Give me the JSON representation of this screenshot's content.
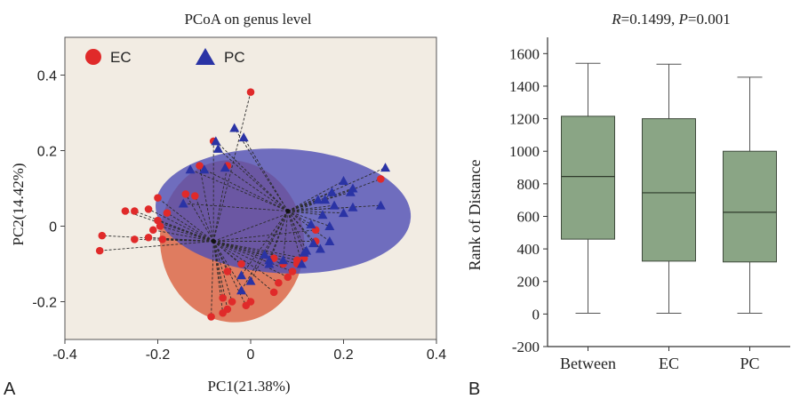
{
  "panel_a": {
    "letter": "A",
    "chart_data": {
      "type": "scatter",
      "title": "PCoA on genus level",
      "xlabel": "PC1(21.38%)",
      "ylabel": "PC2(14.42%)",
      "xlim": [
        -0.4,
        0.4
      ],
      "ylim": [
        -0.3,
        0.5
      ],
      "xticks": [
        "-0.4",
        "-0.2",
        "0",
        "0.2",
        "0.4"
      ],
      "yticks": [
        "-0.2",
        "0",
        "0.2",
        "0.4"
      ],
      "grid": false,
      "legend_position": "top-left",
      "background_color": "#f2ece3",
      "series": [
        {
          "name": "EC",
          "marker": "circle",
          "color": "#e02a2a",
          "ellipse_color": "#d9603f",
          "centroid": [
            -0.08,
            -0.04
          ],
          "ellipse": {
            "cx": -0.04,
            "cy": -0.04,
            "rx": 0.155,
            "ry": 0.215,
            "rotation_deg": 8
          },
          "points": [
            [
              0.0,
              0.355
            ],
            [
              -0.08,
              0.225
            ],
            [
              -0.11,
              0.16
            ],
            [
              -0.05,
              0.16
            ],
            [
              -0.12,
              0.08
            ],
            [
              -0.14,
              0.085
            ],
            [
              -0.2,
              0.075
            ],
            [
              -0.22,
              0.045
            ],
            [
              -0.25,
              0.04
            ],
            [
              -0.27,
              0.04
            ],
            [
              -0.18,
              0.035
            ],
            [
              -0.2,
              0.015
            ],
            [
              -0.195,
              0.0
            ],
            [
              -0.21,
              -0.01
            ],
            [
              -0.22,
              -0.03
            ],
            [
              -0.25,
              -0.035
            ],
            [
              -0.32,
              -0.025
            ],
            [
              -0.325,
              -0.065
            ],
            [
              -0.19,
              -0.035
            ],
            [
              -0.06,
              -0.19
            ],
            [
              -0.04,
              -0.2
            ],
            [
              -0.05,
              -0.22
            ],
            [
              -0.06,
              -0.23
            ],
            [
              -0.085,
              -0.24
            ],
            [
              -0.01,
              -0.21
            ],
            [
              0.0,
              -0.2
            ],
            [
              0.05,
              -0.175
            ],
            [
              0.06,
              -0.15
            ],
            [
              0.08,
              -0.135
            ],
            [
              0.09,
              -0.12
            ],
            [
              0.1,
              -0.1
            ],
            [
              0.07,
              -0.1
            ],
            [
              0.05,
              -0.085
            ],
            [
              0.1,
              -0.09
            ],
            [
              0.115,
              -0.085
            ],
            [
              0.14,
              -0.04
            ],
            [
              0.14,
              -0.01
            ],
            [
              0.28,
              0.125
            ],
            [
              -0.05,
              -0.12
            ],
            [
              -0.02,
              -0.1
            ]
          ]
        },
        {
          "name": "PC",
          "marker": "triangle",
          "color": "#2a33a5",
          "ellipse_color": "#4e4eb4",
          "centroid": [
            0.08,
            0.04
          ],
          "ellipse": {
            "cx": 0.07,
            "cy": 0.04,
            "rx": 0.275,
            "ry": 0.165,
            "rotation_deg": -3
          },
          "points": [
            [
              -0.035,
              0.26
            ],
            [
              -0.075,
              0.225
            ],
            [
              -0.07,
              0.205
            ],
            [
              -0.015,
              0.235
            ],
            [
              -0.13,
              0.15
            ],
            [
              -0.1,
              0.15
            ],
            [
              -0.055,
              0.155
            ],
            [
              -0.145,
              0.06
            ],
            [
              0.29,
              0.155
            ],
            [
              0.2,
              0.12
            ],
            [
              0.215,
              0.09
            ],
            [
              0.175,
              0.09
            ],
            [
              0.145,
              0.07
            ],
            [
              0.16,
              0.07
            ],
            [
              0.22,
              0.1
            ],
            [
              0.18,
              0.055
            ],
            [
              0.22,
              0.05
            ],
            [
              0.28,
              0.055
            ],
            [
              0.2,
              0.035
            ],
            [
              0.155,
              0.03
            ],
            [
              0.13,
              0.005
            ],
            [
              0.17,
              0.0
            ],
            [
              0.135,
              -0.045
            ],
            [
              0.115,
              -0.07
            ],
            [
              0.17,
              -0.04
            ],
            [
              0.03,
              -0.075
            ],
            [
              0.07,
              -0.09
            ],
            [
              0.04,
              -0.09
            ],
            [
              0.04,
              -0.1
            ],
            [
              0.11,
              -0.1
            ],
            [
              -0.02,
              -0.13
            ],
            [
              -0.02,
              -0.17
            ],
            [
              0.0,
              -0.145
            ],
            [
              0.12,
              -0.065
            ],
            [
              0.15,
              -0.06
            ]
          ]
        }
      ]
    }
  },
  "panel_b": {
    "letter": "B",
    "chart_data": {
      "type": "box",
      "title_parts": {
        "r_label": "R",
        "r_value": "=0.1499, ",
        "p_label": "P",
        "p_value": "=0.001"
      },
      "xlabel": "",
      "ylabel": "Rank of Distance",
      "ylim": [
        -200,
        1700
      ],
      "yticks": [
        "-200",
        "0",
        "200",
        "400",
        "600",
        "800",
        "1000",
        "1200",
        "1400",
        "1600"
      ],
      "grid": false,
      "box_color": "#8aa585",
      "categories": [
        "Between",
        "EC",
        "PC"
      ],
      "boxes": [
        {
          "category": "Between",
          "whisker_low": 5,
          "q1": 460,
          "median": 845,
          "q3": 1215,
          "whisker_high": 1540
        },
        {
          "category": "EC",
          "whisker_low": 5,
          "q1": 325,
          "median": 745,
          "q3": 1200,
          "whisker_high": 1535
        },
        {
          "category": "PC",
          "whisker_low": 5,
          "q1": 320,
          "median": 625,
          "q3": 1000,
          "whisker_high": 1455
        }
      ]
    }
  }
}
